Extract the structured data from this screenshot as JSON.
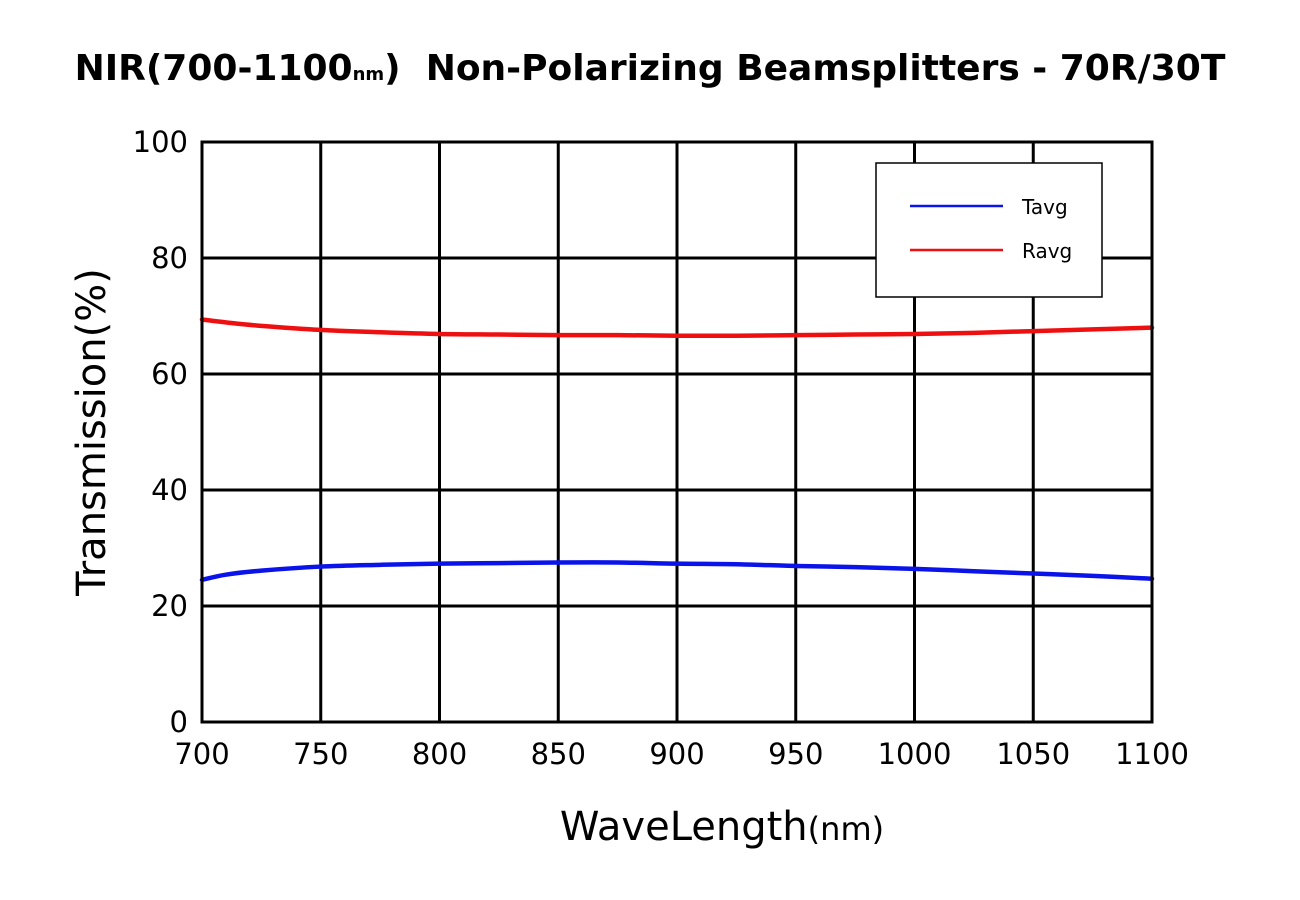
{
  "chart_data": {
    "type": "line",
    "title": "NIR(700-1100nm)  Non-Polarizing Beamsplitters - 70R/30T",
    "title_parts": {
      "pre": "NIR(700-1100",
      "unit": "nm",
      "post": ")  Non-Polarizing Beamsplitters - 70R/30T"
    },
    "xlabel": "WaveLength",
    "xlabel_unit": "(nm)",
    "ylabel": "Transmission(%)",
    "xlim": [
      700,
      1100
    ],
    "ylim": [
      0,
      100
    ],
    "xticks": [
      700,
      750,
      800,
      850,
      900,
      950,
      1000,
      1050,
      1100
    ],
    "yticks": [
      0,
      20,
      40,
      60,
      80,
      100
    ],
    "grid": true,
    "legend_position": "top-right",
    "series": [
      {
        "name": "Tavg",
        "color": "#0a14ea",
        "x": [
          700,
          710,
          725,
          750,
          775,
          800,
          825,
          850,
          875,
          900,
          925,
          950,
          975,
          1000,
          1025,
          1050,
          1075,
          1100
        ],
        "y": [
          24.5,
          25.4,
          26.1,
          26.8,
          27.1,
          27.3,
          27.4,
          27.5,
          27.5,
          27.3,
          27.2,
          26.9,
          26.7,
          26.4,
          26.0,
          25.6,
          25.2,
          24.7
        ]
      },
      {
        "name": "Ravg",
        "color": "#ee1010",
        "x": [
          700,
          710,
          725,
          750,
          775,
          800,
          825,
          850,
          875,
          900,
          925,
          950,
          975,
          1000,
          1025,
          1050,
          1075,
          1100
        ],
        "y": [
          69.4,
          68.9,
          68.3,
          67.6,
          67.2,
          66.9,
          66.8,
          66.7,
          66.7,
          66.6,
          66.6,
          66.7,
          66.8,
          66.9,
          67.1,
          67.4,
          67.7,
          68.0
        ]
      }
    ]
  }
}
